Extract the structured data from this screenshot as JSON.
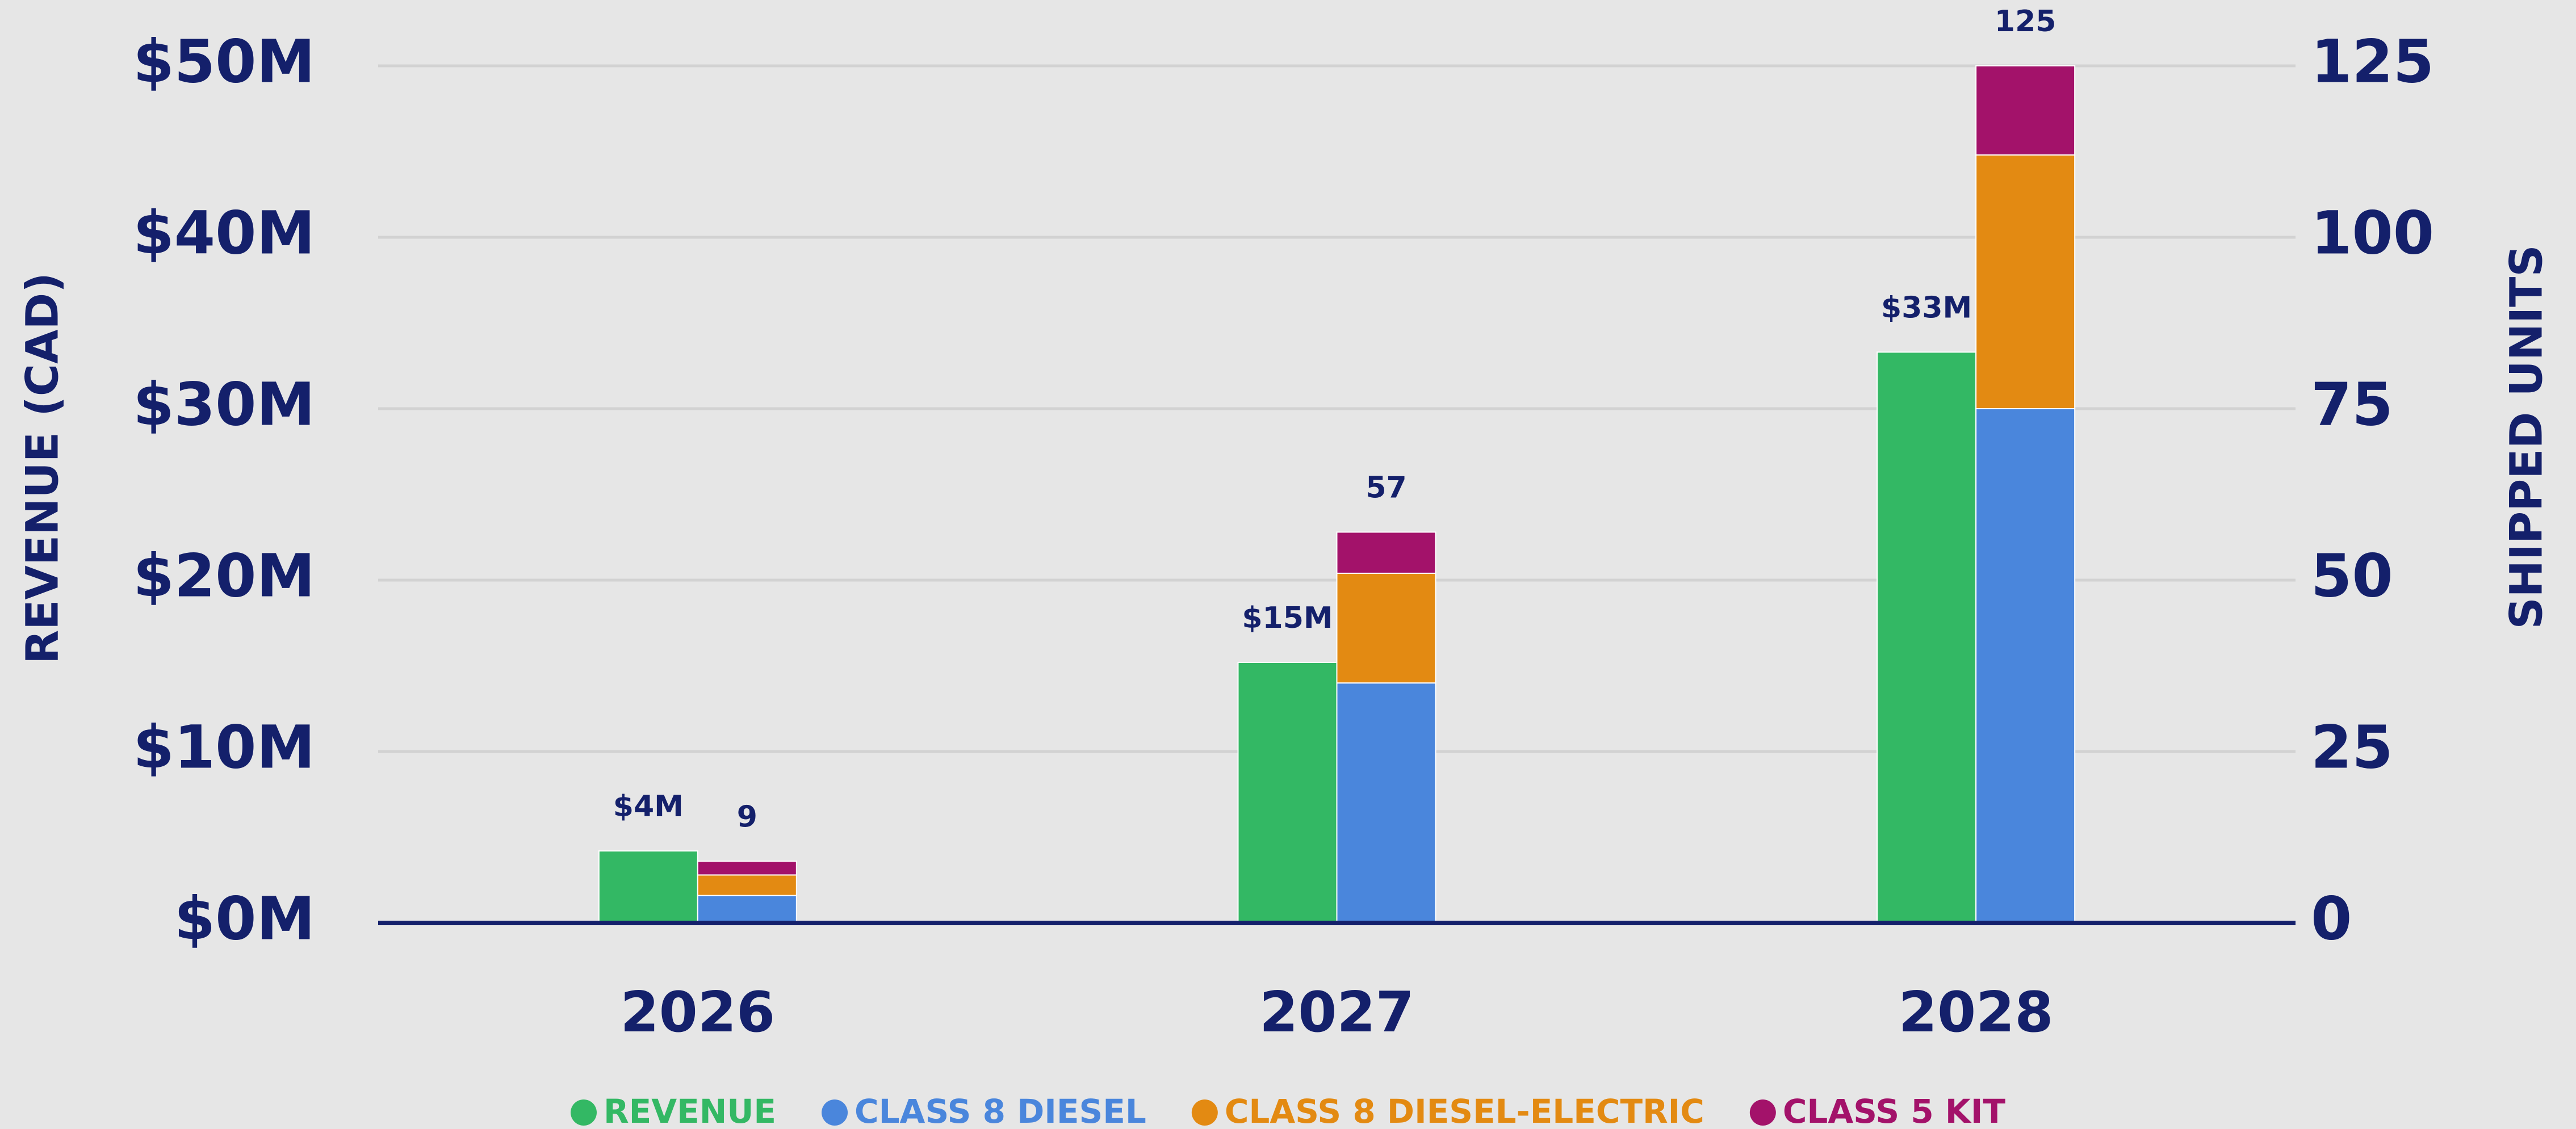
{
  "chart_data": {
    "type": "bar",
    "y_label": "REVENUE (CAD)",
    "y2_label": "SHIPPED UNITS",
    "categories": [
      "2026",
      "2027",
      "2028"
    ],
    "series": [
      {
        "name": "REVENUE",
        "color": "#33b864",
        "values": [
          4.2,
          15.2,
          33.3
        ],
        "value_labels": [
          "$4M",
          "$15M",
          "$33M"
        ]
      },
      {
        "name": "CLASS 8 DIESEL",
        "color": "#4a86dc",
        "axis": "y2",
        "values": [
          4,
          35,
          75
        ]
      },
      {
        "name": "CLASS 8 DIESEL-ELECTRIC",
        "color": "#e38a12",
        "axis": "y2",
        "values": [
          3,
          16,
          37
        ]
      },
      {
        "name": "CLASS 5 KIT",
        "color": "#a3126a",
        "axis": "y2",
        "values": [
          2,
          6,
          13
        ]
      }
    ],
    "totals": [
      9,
      57,
      125
    ],
    "ylim": [
      0,
      50
    ],
    "yticks": [
      {
        "value": 0,
        "label": "$0M"
      },
      {
        "value": 10,
        "label": "$10M"
      },
      {
        "value": 20,
        "label": "$20M"
      },
      {
        "value": 30,
        "label": "$30M"
      },
      {
        "value": 40,
        "label": "$40M"
      },
      {
        "value": 50,
        "label": "$50M"
      }
    ],
    "y2lim": [
      0,
      125
    ],
    "y2ticks": [
      0,
      25,
      50,
      75,
      100,
      125
    ],
    "grid": true
  }
}
